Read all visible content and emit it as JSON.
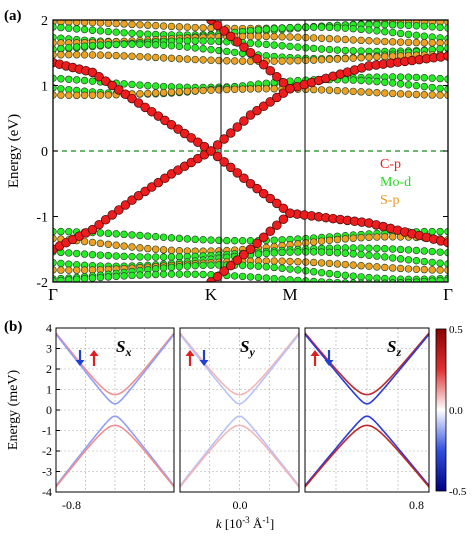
{
  "colors": {
    "carbon_p": "#ee1c1c",
    "mo_d": "#22ee22",
    "s_p": "#f0a020",
    "dirac_red": "#e02020",
    "dirac_blue": "#2040d0",
    "fermi_line": "#1a8a1a"
  },
  "chart_data": [
    {
      "panel_label": "(a)",
      "type": "scatter",
      "title": "",
      "xlabel": "",
      "ylabel": "Energy (eV)",
      "ylim": [
        -2,
        2
      ],
      "yticks": [
        "-2",
        "-1",
        "0",
        "1",
        "2"
      ],
      "kpoints": [
        "Γ",
        "K",
        "M",
        "Γ"
      ],
      "kpoint_positions": [
        0,
        1,
        1.5,
        2.5
      ],
      "fermi_level": 0,
      "fermi_line_style": "dashed",
      "legend": [
        {
          "label": "C-p",
          "color": "#ee1c1c"
        },
        {
          "label": "Mo-d",
          "color": "#22ee22"
        },
        {
          "label": "S-p",
          "color": "#f0a020"
        }
      ],
      "legend_position": "right",
      "bands": [
        {
          "name": "C-p",
          "x": [
            0,
            0.25,
            0.5,
            0.75,
            1.0,
            1.25,
            1.5,
            2.0,
            2.5
          ],
          "y": [
            -1.5,
            -1.2,
            -0.75,
            -0.35,
            0.0,
            0.55,
            0.95,
            1.3,
            1.45
          ]
        },
        {
          "name": "C-p",
          "x": [
            0,
            0.25,
            0.5,
            0.75,
            1.0,
            1.25,
            1.5,
            2.0,
            2.5
          ],
          "y": [
            1.35,
            1.2,
            0.8,
            0.4,
            0.0,
            -0.5,
            -0.95,
            -1.1,
            -1.4
          ]
        },
        {
          "name": "C-p",
          "x": [
            1.0,
            1.25,
            1.5
          ],
          "y": [
            -2.0,
            -1.5,
            -0.95
          ]
        },
        {
          "name": "C-p",
          "x": [
            1.0,
            1.25,
            1.5
          ],
          "y": [
            2.0,
            1.5,
            0.95
          ]
        }
      ]
    },
    {
      "panel_label": "(b)",
      "type": "line",
      "title": "",
      "xlabel": "k [10⁻³ Å⁻¹]",
      "ylabel": "Energy (meV)",
      "ylim": [
        -4,
        4
      ],
      "yticks": [
        "-4",
        "-3",
        "-2",
        "-1",
        "0",
        "1",
        "2",
        "3",
        "4"
      ],
      "xticks": [
        "-0.8",
        "0.0",
        "0.8"
      ],
      "grid": true,
      "subplots": [
        {
          "title": "Sx",
          "title_main": "S",
          "title_sub": "x",
          "gaps_meV": [
            0.3,
            0.75
          ],
          "colors": [
            "#7f8ff0",
            "#f08f8f"
          ],
          "outer_color": "#f08f8f",
          "inner_color": "#8f9ff5"
        },
        {
          "title": "Sy",
          "title_main": "S",
          "title_sub": "y",
          "gaps_meV": [
            0.3,
            0.75
          ],
          "colors": [
            "#b9c2f7",
            "#f3b5b5"
          ],
          "outer_color": "#f3b5b5",
          "inner_color": "#b9c2f7"
        },
        {
          "title": "Sz",
          "title_main": "S",
          "title_sub": "z",
          "gaps_meV": [
            0.3,
            0.75
          ],
          "colors": [
            "#2a3cd8",
            "#c02828"
          ],
          "outer_color": "#c02828",
          "inner_color": "#2a3cd8"
        }
      ],
      "slope_meV_per_unit_k": 4.6,
      "colorbar": {
        "min": -0.5,
        "max": 0.5,
        "ticks": [
          "0.5",
          "0.0",
          "-0.5"
        ]
      }
    }
  ]
}
